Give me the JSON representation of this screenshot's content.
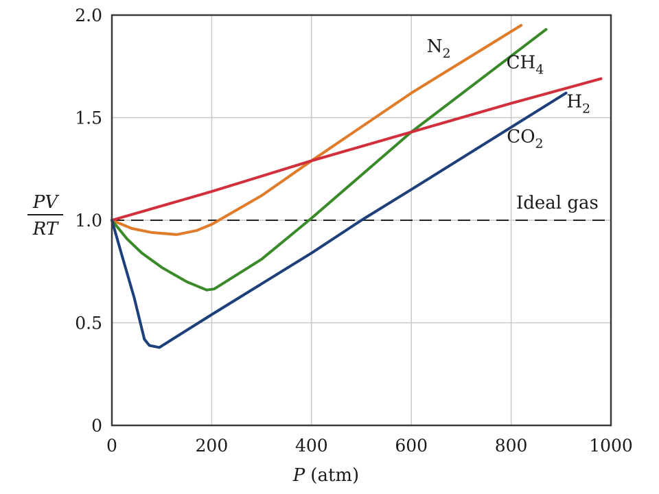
{
  "chart_data": {
    "type": "line",
    "xlabel_var": "P",
    "xlabel_unit": "(atm)",
    "ylabel_num": "PV",
    "ylabel_den": "RT",
    "xlim": [
      0,
      1000
    ],
    "ylim": [
      0,
      2.0
    ],
    "x_ticks": [
      0,
      200,
      400,
      600,
      800,
      1000
    ],
    "y_ticks": [
      0,
      0.5,
      1.0,
      1.5,
      2.0
    ],
    "x_tick_labels": [
      "0",
      "200",
      "400",
      "600",
      "800",
      "1000"
    ],
    "y_tick_labels": [
      "0",
      "0.5",
      "1.0",
      "1.5",
      "2.0"
    ],
    "grid": true,
    "reference_line": {
      "y": 1.0,
      "label": "Ideal gas",
      "style": "dashed",
      "color": "#222222"
    },
    "series": [
      {
        "name": "N",
        "sub": "2",
        "color": "#e07b2a",
        "points": [
          [
            0,
            1.0
          ],
          [
            40,
            0.96
          ],
          [
            80,
            0.94
          ],
          [
            130,
            0.93
          ],
          [
            170,
            0.95
          ],
          [
            200,
            0.98
          ],
          [
            300,
            1.12
          ],
          [
            400,
            1.29
          ],
          [
            600,
            1.62
          ],
          [
            820,
            1.95
          ]
        ]
      },
      {
        "name": "CH",
        "sub": "4",
        "color": "#3a8a2a",
        "points": [
          [
            0,
            1.0
          ],
          [
            30,
            0.91
          ],
          [
            60,
            0.84
          ],
          [
            100,
            0.77
          ],
          [
            150,
            0.7
          ],
          [
            190,
            0.66
          ],
          [
            205,
            0.665
          ],
          [
            300,
            0.81
          ],
          [
            400,
            1.01
          ],
          [
            600,
            1.43
          ],
          [
            870,
            1.93
          ]
        ]
      },
      {
        "name": "H",
        "sub": "2",
        "color": "#d22f3c",
        "points": [
          [
            0,
            1.0
          ],
          [
            200,
            1.14
          ],
          [
            400,
            1.29
          ],
          [
            600,
            1.43
          ],
          [
            800,
            1.57
          ],
          [
            980,
            1.69
          ]
        ]
      },
      {
        "name": "CO",
        "sub": "2",
        "color": "#1d3f7a",
        "points": [
          [
            0,
            1.0
          ],
          [
            20,
            0.83
          ],
          [
            45,
            0.62
          ],
          [
            65,
            0.42
          ],
          [
            75,
            0.39
          ],
          [
            95,
            0.38
          ],
          [
            200,
            0.54
          ],
          [
            400,
            0.84
          ],
          [
            500,
            1.0
          ],
          [
            600,
            1.15
          ],
          [
            910,
            1.62
          ]
        ]
      }
    ]
  }
}
